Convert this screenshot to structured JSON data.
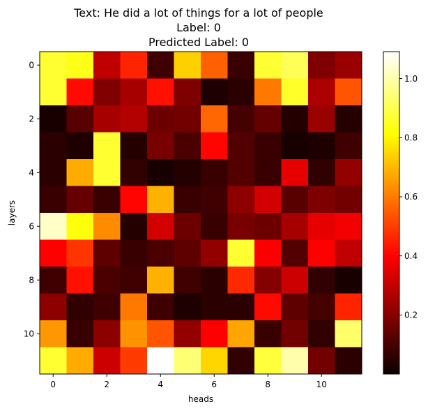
{
  "chart_data": {
    "type": "heatmap",
    "title": [
      "Text: He did a lot of things for a lot of people",
      "Label: 0",
      "Predicted Label: 0"
    ],
    "xlabel": "heads",
    "ylabel": "layers",
    "x_ticks": [
      "0",
      "2",
      "4",
      "6",
      "8",
      "10"
    ],
    "y_ticks": [
      "0",
      "2",
      "4",
      "6",
      "8",
      "10"
    ],
    "colorbar_ticks": [
      "0.2",
      "0.4",
      "0.6",
      "0.8",
      "1.0"
    ],
    "colormap": "hot",
    "vmin": 0.0,
    "vmax": 1.08,
    "grid": false,
    "rows": 12,
    "cols": 12,
    "values": [
      [
        0.86,
        0.83,
        0.28,
        0.45,
        0.08,
        0.73,
        0.55,
        0.07,
        0.86,
        0.9,
        0.18,
        0.22
      ],
      [
        0.86,
        0.41,
        0.18,
        0.24,
        0.42,
        0.18,
        0.03,
        0.05,
        0.59,
        0.85,
        0.25,
        0.53
      ],
      [
        0.02,
        0.12,
        0.24,
        0.26,
        0.15,
        0.16,
        0.56,
        0.09,
        0.14,
        0.04,
        0.22,
        0.04
      ],
      [
        0.05,
        0.03,
        0.86,
        0.04,
        0.17,
        0.1,
        0.4,
        0.11,
        0.07,
        0.02,
        0.03,
        0.08
      ],
      [
        0.05,
        0.67,
        0.86,
        0.06,
        0.02,
        0.04,
        0.07,
        0.11,
        0.07,
        0.34,
        0.06,
        0.21
      ],
      [
        0.07,
        0.14,
        0.07,
        0.4,
        0.68,
        0.07,
        0.08,
        0.2,
        0.31,
        0.12,
        0.18,
        0.16
      ],
      [
        1.02,
        0.82,
        0.62,
        0.04,
        0.31,
        0.15,
        0.07,
        0.17,
        0.15,
        0.24,
        0.34,
        0.36
      ],
      [
        0.39,
        0.48,
        0.13,
        0.07,
        0.1,
        0.13,
        0.21,
        0.86,
        0.37,
        0.11,
        0.39,
        0.28
      ],
      [
        0.08,
        0.42,
        0.1,
        0.08,
        0.68,
        0.08,
        0.05,
        0.46,
        0.19,
        0.3,
        0.06,
        0.02
      ],
      [
        0.2,
        0.06,
        0.08,
        0.59,
        0.08,
        0.03,
        0.05,
        0.05,
        0.41,
        0.13,
        0.09,
        0.45
      ],
      [
        0.64,
        0.07,
        0.2,
        0.63,
        0.53,
        0.21,
        0.39,
        0.66,
        0.07,
        0.16,
        0.06,
        0.92
      ],
      [
        0.86,
        0.67,
        0.3,
        0.49,
        1.08,
        0.93,
        0.74,
        0.06,
        0.87,
        0.99,
        0.16,
        0.05
      ]
    ]
  }
}
